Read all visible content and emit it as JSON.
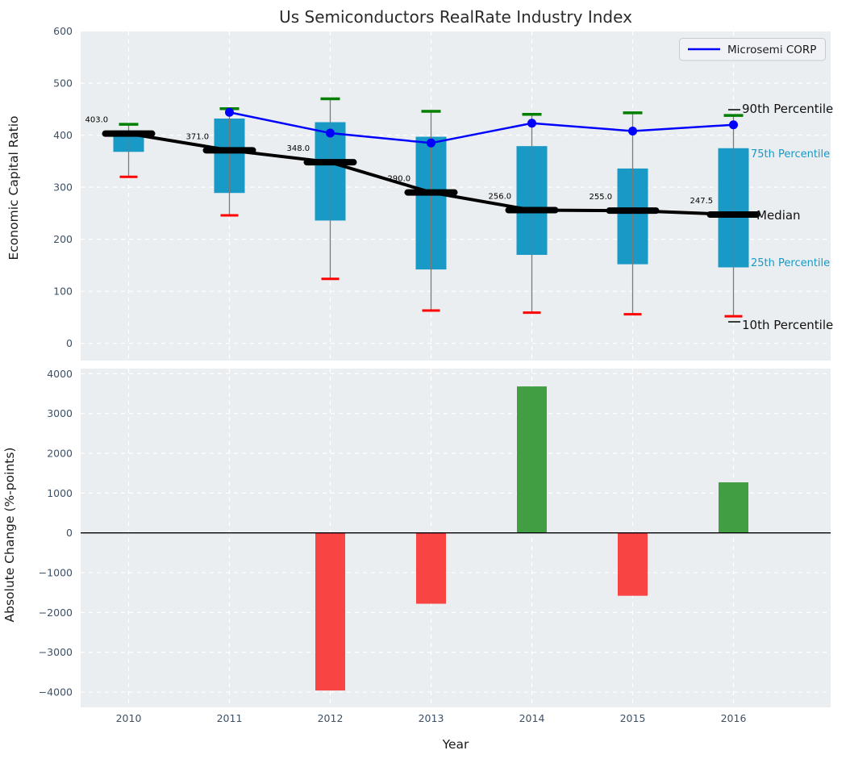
{
  "title": "Us Semiconductors RealRate Industry Index",
  "legend": {
    "label": "Microsemi CORP"
  },
  "colors": {
    "panel_bg": "#ebeef0",
    "grid": "#ffffff",
    "tick_text": "#3d5166",
    "box_fill": "#1899c6",
    "whisker": "#7a7a7a",
    "cap_top_green": "#007f00",
    "cap_bottom_red": "#ff0000",
    "median_black": "#000000",
    "microsemi_blue": "#0000ff",
    "bar_negative_red": "#fa3a3a",
    "bar_positive_green": "#389938",
    "legend_bg": "#f1f2f6",
    "legend_border": "#c9cad1"
  },
  "chart_data": [
    {
      "type": "boxplot",
      "title": "Us Semiconductors RealRate Industry Index",
      "ylabel": "Economic Capital Ratio",
      "categories": [
        "2010",
        "2011",
        "2012",
        "2013",
        "2014",
        "2015",
        "2016"
      ],
      "yticks": [
        600,
        500,
        400,
        300,
        200,
        100,
        0
      ],
      "ylim": [
        -33,
        600
      ],
      "grid": true,
      "legend_position": "upper right",
      "series": [
        {
          "name": "90th Percentile",
          "values": [
            421,
            451,
            470,
            446,
            440,
            443,
            438
          ]
        },
        {
          "name": "75th Percentile",
          "values": [
            409,
            432,
            425,
            397,
            379,
            336,
            375
          ]
        },
        {
          "name": "Median",
          "values": [
            403,
            371,
            348,
            290,
            256,
            255,
            247.5
          ]
        },
        {
          "name": "25th Percentile",
          "values": [
            368,
            289,
            236,
            142,
            170,
            152,
            146
          ]
        },
        {
          "name": "10th Percentile",
          "values": [
            320,
            246,
            124,
            63,
            59,
            56,
            52
          ]
        },
        {
          "name": "Microsemi CORP",
          "values": [
            null,
            444,
            404,
            385,
            423,
            408,
            420
          ]
        }
      ],
      "median_labels": [
        "403.0",
        "371.0",
        "348.0",
        "290.0",
        "256.0",
        "255.0",
        "247.5"
      ],
      "annotations": [
        "90th Percentile",
        "75th Percentile",
        "Median",
        "25th Percentile",
        "10th Percentile"
      ]
    },
    {
      "type": "bar",
      "ylabel": "Absolute Change (%-points)",
      "xlabel": "Year",
      "categories": [
        "2010",
        "2011",
        "2012",
        "2013",
        "2014",
        "2015",
        "2016"
      ],
      "values": [
        null,
        null,
        -3960,
        -1780,
        3680,
        -1580,
        1270
      ],
      "yticks": [
        4000,
        3000,
        2000,
        1000,
        0,
        -1000,
        -2000,
        -3000,
        -4000
      ],
      "ylim": [
        -4380,
        4130
      ],
      "grid": true,
      "zero_line": true
    }
  ]
}
